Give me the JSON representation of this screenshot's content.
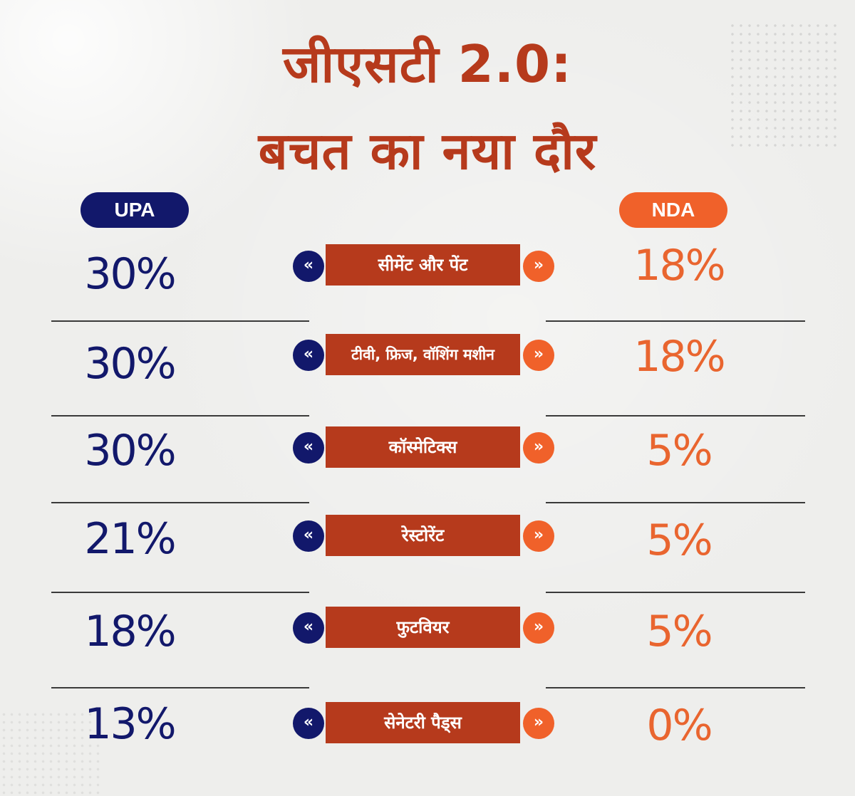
{
  "title": {
    "line1": "जीएसटी 2.0:",
    "line2": "बचत का नया दौर"
  },
  "headers": {
    "left": "UPA",
    "right": "NDA"
  },
  "arrows": {
    "left_glyph": "«",
    "right_glyph": "»"
  },
  "rows": [
    {
      "category": "सीमेंट और पेंट",
      "upa": "30%",
      "nda": "18%"
    },
    {
      "category": "टीवी, फ्रिज, वॉशिंग मशीन",
      "upa": "30%",
      "nda": "18%"
    },
    {
      "category": "कॉस्मेटिक्स",
      "upa": "30%",
      "nda": "5%"
    },
    {
      "category": "रेस्टोरेंट",
      "upa": "21%",
      "nda": "5%"
    },
    {
      "category": "फुटवियर",
      "upa": "18%",
      "nda": "5%"
    },
    {
      "category": "सेनेटरी पैड्स",
      "upa": "13%",
      "nda": "0%"
    }
  ],
  "colors": {
    "title": "#b63a1c",
    "upa": "#12186b",
    "nda": "#f0612a",
    "label_bg": "#b63a1c",
    "background": "#eeeeec"
  }
}
